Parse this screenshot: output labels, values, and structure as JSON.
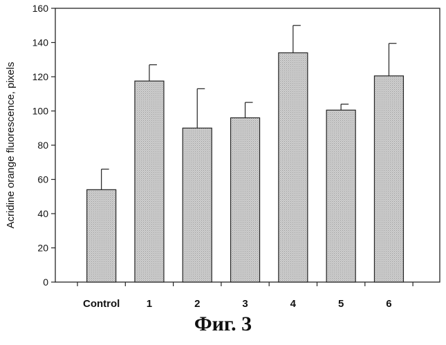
{
  "chart_data": {
    "type": "bar",
    "categories": [
      "Control",
      "1",
      "2",
      "3",
      "4",
      "5",
      "6"
    ],
    "values": [
      54,
      117.5,
      90,
      96,
      134,
      100.5,
      120.5
    ],
    "error_upper": [
      66,
      127,
      113,
      105,
      150,
      104,
      139.5
    ],
    "ylabel": "Acridine orange fluorescence, pixels",
    "ylim": [
      0,
      160
    ],
    "yticks": [
      0,
      20,
      40,
      60,
      80,
      100,
      120,
      140,
      160
    ],
    "grid": false,
    "colors": {
      "bar_fill": "#c8c8c8",
      "bar_stroke": "#222222",
      "axis": "#222222"
    }
  },
  "caption": "Фиг. 3"
}
